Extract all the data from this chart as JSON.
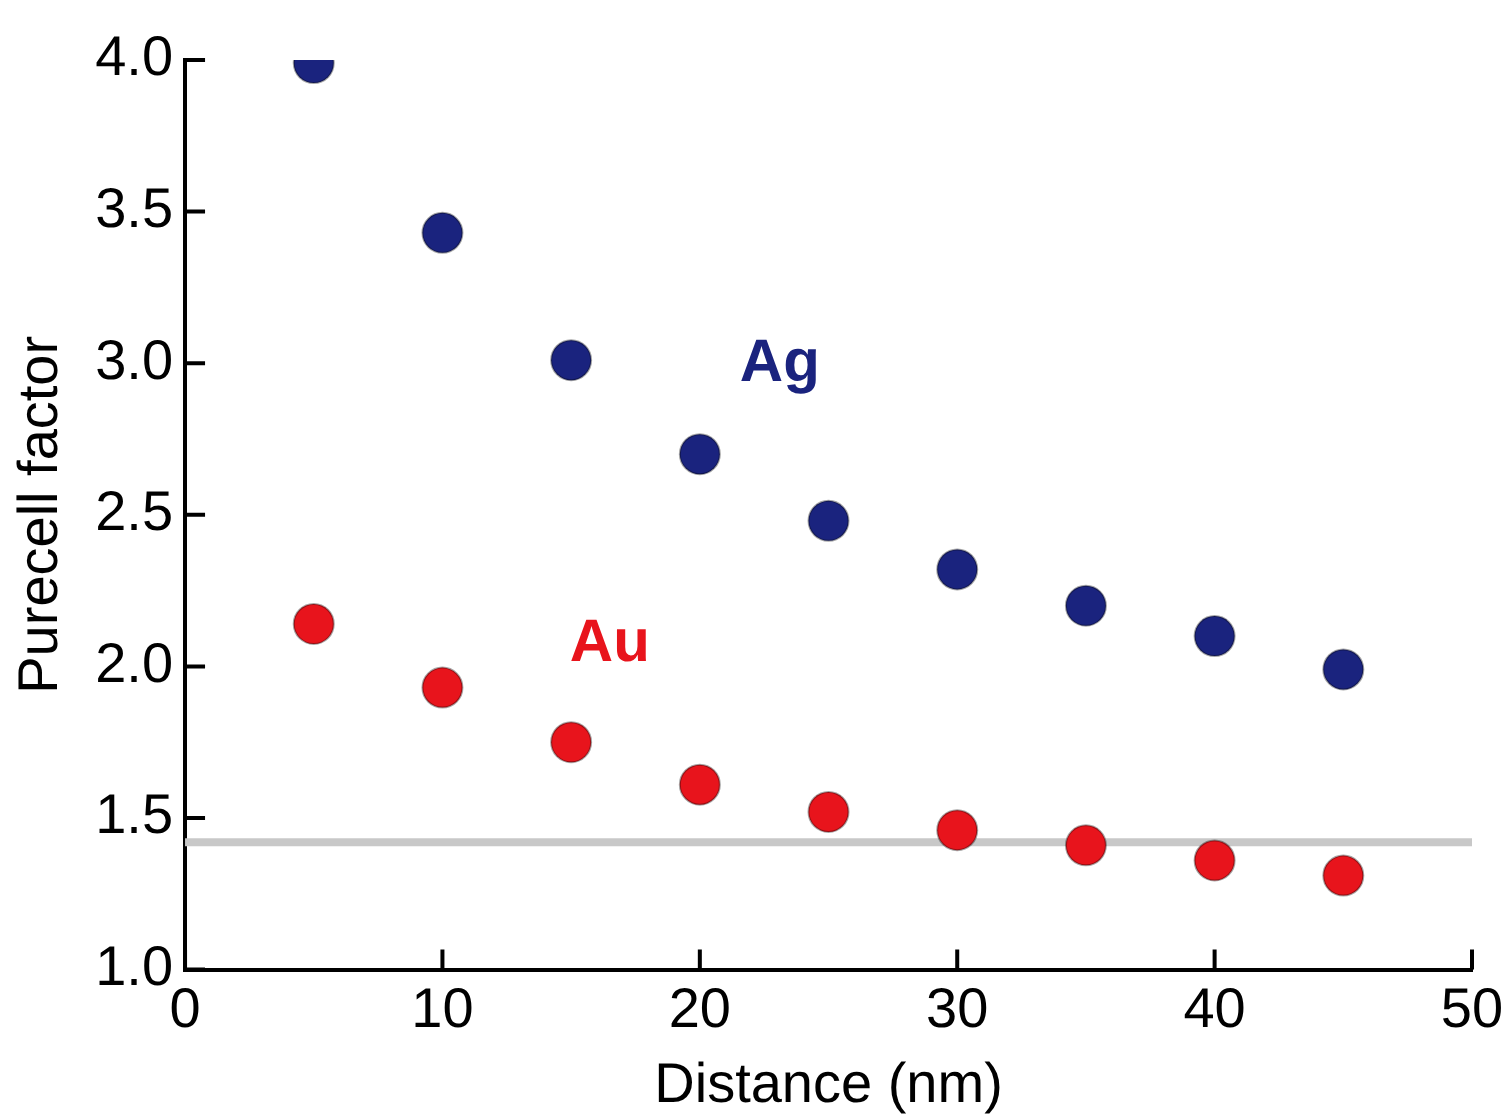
{
  "chart_data": {
    "type": "scatter",
    "xlabel": "Distance (nm)",
    "ylabel": "Purecell factor",
    "x": [
      5,
      10,
      15,
      20,
      25,
      30,
      35,
      40,
      45
    ],
    "series": [
      {
        "name": "Ag",
        "color": "#1a237e",
        "values": [
          3.99,
          3.43,
          3.01,
          2.7,
          2.48,
          2.32,
          2.2,
          2.1,
          1.99
        ]
      },
      {
        "name": "Au",
        "color": "#e8141c",
        "values": [
          2.14,
          1.93,
          1.75,
          1.61,
          1.52,
          1.46,
          1.41,
          1.36,
          1.31
        ]
      }
    ],
    "xlim": [
      0,
      50
    ],
    "xticks": [
      0,
      10,
      20,
      30,
      40,
      50
    ],
    "ylim": [
      1,
      4
    ],
    "yticks": [
      {
        "value": 1,
        "label": "1.0"
      },
      {
        "value": 1.5,
        "label": "1.5"
      },
      {
        "value": 2,
        "label": "2.0"
      },
      {
        "value": 2.5,
        "label": "2.5"
      },
      {
        "value": 3,
        "label": "3.0"
      },
      {
        "value": 3.5,
        "label": "3.5"
      },
      {
        "value": 4,
        "label": "4.0"
      }
    ],
    "ref_lines": [
      {
        "axis": "y",
        "value": 1.42,
        "color": "#c8c8c8"
      }
    ],
    "grid": false,
    "legend": false,
    "marker": "circle"
  }
}
